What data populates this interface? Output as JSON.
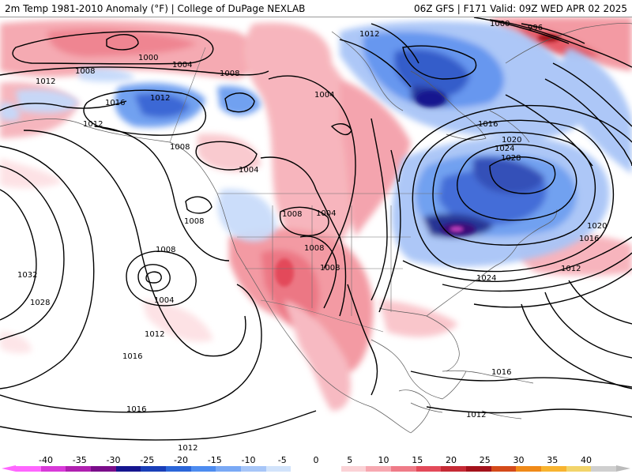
{
  "header": {
    "left_title": "2m Temp 1981-2010 Anomaly (°F) | College of DuPage NEXLAB",
    "right_title": "06Z GFS | F171 Valid: 09Z WED APR 02 2025"
  },
  "isobar_labels": [
    "1000",
    "996",
    "1004",
    "1008",
    "1012",
    "1016",
    "1020",
    "1024",
    "1028",
    "1032"
  ],
  "legend": {
    "ticks": [
      "-40",
      "-35",
      "-30",
      "-25",
      "-20",
      "-15",
      "-10",
      "-5",
      "0",
      "5",
      "10",
      "15",
      "20",
      "25",
      "30",
      "35",
      "40"
    ],
    "colors": [
      "#ff66ff",
      "#d93ad9",
      "#b020b0",
      "#7a0d8a",
      "#16168f",
      "#1a3fb8",
      "#2b66d9",
      "#4d8cf0",
      "#7aa9f5",
      "#a7c6f8",
      "#d2e3fb",
      "#ffffff",
      "#ffffff",
      "#fbd2d6",
      "#f7a8b1",
      "#ef7b88",
      "#e34a5a",
      "#c62a35",
      "#a3121b",
      "#d44a1a",
      "#f08a18",
      "#f8b430",
      "#f2d46a",
      "#cfcfcf"
    ]
  }
}
